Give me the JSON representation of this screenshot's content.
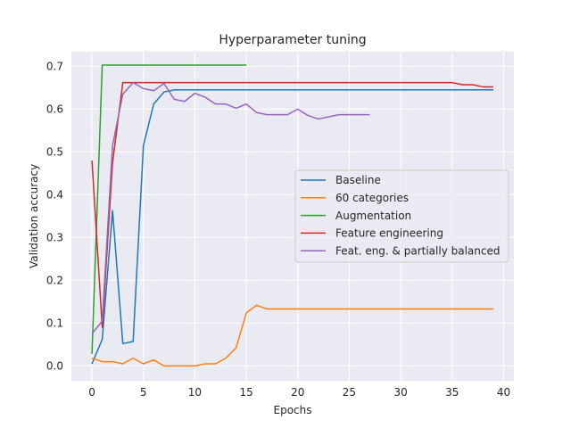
{
  "chart_data": {
    "type": "line",
    "title": "Hyperparameter tuning",
    "xlabel": "Epochs",
    "ylabel": "Validation accuracy",
    "xlim": [
      -2,
      41
    ],
    "ylim": [
      -0.035,
      0.735
    ],
    "xticks": [
      0,
      5,
      10,
      15,
      20,
      25,
      30,
      35,
      40
    ],
    "yticks": [
      0.0,
      0.1,
      0.2,
      0.3,
      0.4,
      0.5,
      0.6,
      0.7
    ],
    "grid": true,
    "legend_position": "center-right",
    "series": [
      {
        "name": "Baseline",
        "color": "#1f77b4",
        "x": [
          0,
          1,
          2,
          3,
          4,
          5,
          6,
          7,
          8,
          9,
          10,
          11,
          12,
          13,
          14,
          15,
          16,
          17,
          18,
          19,
          20,
          21,
          22,
          23,
          24,
          25,
          26,
          27,
          28,
          29,
          30,
          31,
          32,
          33,
          34,
          35,
          36,
          37,
          38,
          39
        ],
        "values": [
          0.005,
          0.062,
          0.363,
          0.052,
          0.057,
          0.515,
          0.612,
          0.64,
          0.645,
          0.645,
          0.645,
          0.645,
          0.645,
          0.645,
          0.645,
          0.645,
          0.645,
          0.645,
          0.645,
          0.645,
          0.645,
          0.645,
          0.645,
          0.645,
          0.645,
          0.645,
          0.645,
          0.645,
          0.645,
          0.645,
          0.645,
          0.645,
          0.645,
          0.645,
          0.645,
          0.645,
          0.645,
          0.645,
          0.645,
          0.645
        ]
      },
      {
        "name": "60 categories",
        "color": "#ff7f0e",
        "x": [
          0,
          1,
          2,
          3,
          4,
          5,
          6,
          7,
          8,
          9,
          10,
          11,
          12,
          13,
          14,
          15,
          16,
          17,
          18,
          19,
          20,
          21,
          22,
          23,
          24,
          25,
          26,
          27,
          28,
          29,
          30,
          31,
          32,
          33,
          34,
          35,
          36,
          37,
          38,
          39
        ],
        "values": [
          0.018,
          0.01,
          0.01,
          0.005,
          0.018,
          0.005,
          0.014,
          0.0,
          0.0,
          0.0,
          0.0,
          0.005,
          0.005,
          0.018,
          0.042,
          0.124,
          0.142,
          0.133,
          0.133,
          0.133,
          0.133,
          0.133,
          0.133,
          0.133,
          0.133,
          0.133,
          0.133,
          0.133,
          0.133,
          0.133,
          0.133,
          0.133,
          0.133,
          0.133,
          0.133,
          0.133,
          0.133,
          0.133,
          0.133,
          0.133
        ]
      },
      {
        "name": "Augmentation",
        "color": "#2ca02c",
        "x": [
          0,
          1,
          2,
          3,
          4,
          5,
          6,
          7,
          8,
          9,
          10,
          11,
          12,
          13,
          14,
          15
        ],
        "values": [
          0.028,
          0.703,
          0.703,
          0.703,
          0.703,
          0.703,
          0.703,
          0.703,
          0.703,
          0.703,
          0.703,
          0.703,
          0.703,
          0.703,
          0.703,
          0.703
        ]
      },
      {
        "name": "Feature engineering",
        "color": "#d62728",
        "x": [
          0,
          1,
          2,
          3,
          4,
          5,
          6,
          7,
          8,
          9,
          10,
          11,
          12,
          13,
          14,
          15,
          16,
          17,
          18,
          19,
          20,
          21,
          22,
          23,
          24,
          25,
          26,
          27,
          28,
          29,
          30,
          31,
          32,
          33,
          34,
          35,
          36,
          37,
          38,
          39
        ],
        "values": [
          0.48,
          0.09,
          0.475,
          0.662,
          0.662,
          0.662,
          0.662,
          0.662,
          0.662,
          0.662,
          0.662,
          0.662,
          0.662,
          0.662,
          0.662,
          0.662,
          0.662,
          0.662,
          0.662,
          0.662,
          0.662,
          0.662,
          0.662,
          0.662,
          0.662,
          0.662,
          0.662,
          0.662,
          0.662,
          0.662,
          0.662,
          0.662,
          0.662,
          0.662,
          0.662,
          0.662,
          0.657,
          0.657,
          0.652,
          0.652
        ]
      },
      {
        "name": "Feat. eng. & partially balanced",
        "color": "#9467bd",
        "x": [
          0,
          1,
          2,
          3,
          4,
          5,
          6,
          7,
          8,
          9,
          10,
          11,
          12,
          13,
          14,
          15,
          16,
          17,
          18,
          19,
          20,
          21,
          22,
          23,
          24,
          25,
          26,
          27
        ],
        "values": [
          0.075,
          0.105,
          0.515,
          0.635,
          0.662,
          0.648,
          0.643,
          0.66,
          0.623,
          0.618,
          0.637,
          0.628,
          0.612,
          0.612,
          0.602,
          0.612,
          0.592,
          0.587,
          0.587,
          0.587,
          0.6,
          0.585,
          0.577,
          0.582,
          0.587,
          0.587,
          0.587,
          0.587
        ]
      }
    ]
  }
}
